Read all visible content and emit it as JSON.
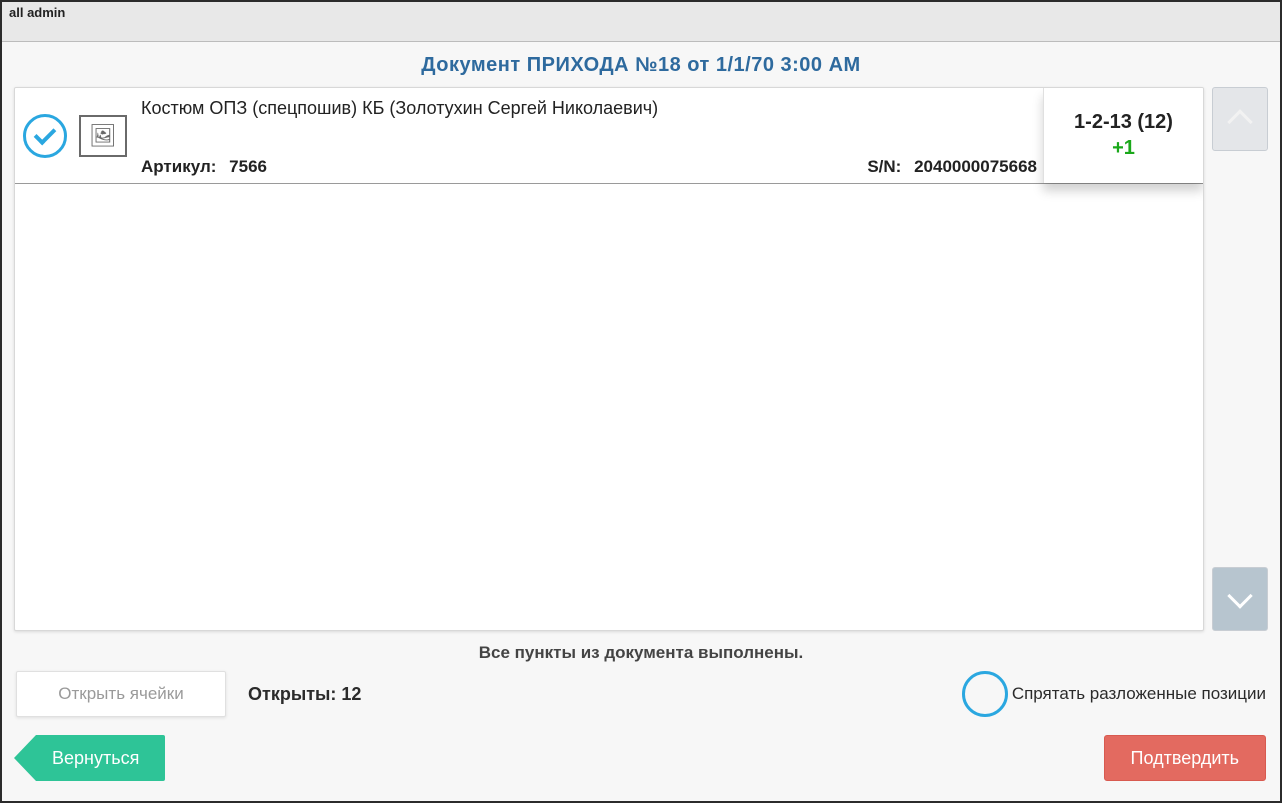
{
  "window": {
    "title": "all admin"
  },
  "header": {
    "title": "Документ ПРИХОДА №18 от 1/1/70 3:00 AM"
  },
  "item": {
    "name": "Костюм ОПЗ (спецпошив) КБ (Золотухин Сергей Николаевич)",
    "article_label": "Артикул:",
    "article_value": "7566",
    "sn_label": "S/N:",
    "sn_value": "2040000075668",
    "cell": "1-2-13 (12)",
    "delta": "+1"
  },
  "status": {
    "all_done": "Все пункты из документа выполнены."
  },
  "controls": {
    "open_cells": "Открыть ячейки",
    "opened_label": "Открыты:",
    "opened_value": "12",
    "hide_label": "Спрятать разложенные позиции",
    "back": "Вернуться",
    "confirm": "Подтвердить"
  },
  "colors": {
    "accent_blue": "#2aa7e0",
    "title_blue": "#2e6a9e",
    "green_delta": "#1aa81a",
    "back_btn": "#2ec497",
    "confirm_btn": "#e36a60"
  }
}
